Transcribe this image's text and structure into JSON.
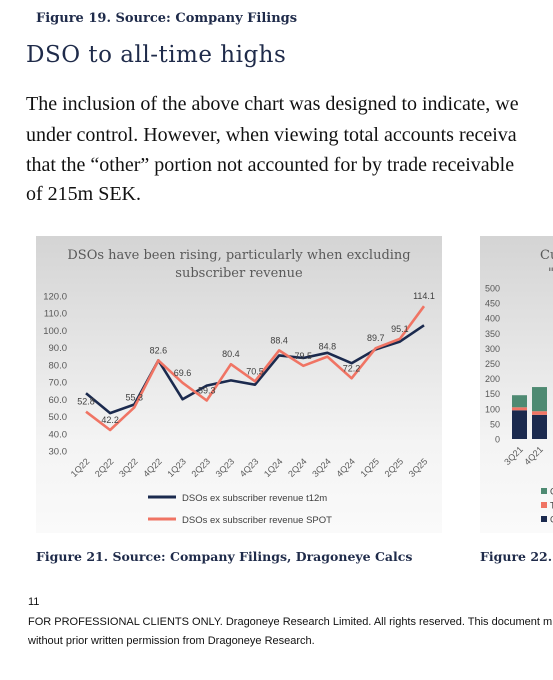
{
  "figure_top_label": "Figure 19.  Source: Company Filings",
  "heading": "DSO to all-time highs",
  "paragraph_lines": [
    "The inclusion of the above chart was designed to indicate, we",
    "under control. However, when viewing total accounts receiva",
    "that the “other” portion not accounted for by trade receivable",
    "of 215m SEK."
  ],
  "chart_data": [
    {
      "type": "line",
      "title": "DSOs have been rising, particularly when excluding subscriber revenue",
      "title_lines": [
        "DSOs have been rising, particularly when excluding",
        "subscriber revenue"
      ],
      "categories": [
        "1Q22",
        "2Q22",
        "3Q22",
        "4Q22",
        "1Q23",
        "2Q23",
        "3Q23",
        "4Q23",
        "1Q24",
        "2Q24",
        "3Q24",
        "4Q24",
        "1Q25",
        "2Q25",
        "3Q25"
      ],
      "y_ticks": [
        "120.0",
        "110.0",
        "100.0",
        "90.0",
        "80.0",
        "70.0",
        "60.0",
        "50.0",
        "40.0",
        "30.0"
      ],
      "ylim": [
        30,
        120
      ],
      "grid": false,
      "legend_position": "bottom",
      "series": [
        {
          "name": "DSOs ex subscriber revenue t12m",
          "color": "#1b2a4e",
          "values": [
            63.5,
            52.0,
            57.0,
            82.6,
            60.0,
            68.0,
            71.0,
            68.5,
            85.5,
            84.0,
            87.0,
            81.0,
            89.0,
            93.5,
            103.0
          ]
        },
        {
          "name": "DSOs ex subscriber revenue SPOT",
          "color": "#f07464",
          "values": [
            52.8,
            42.2,
            55.3,
            82.6,
            69.6,
            59.3,
            80.4,
            70.5,
            88.4,
            79.5,
            84.8,
            72.2,
            89.7,
            95.1,
            114.1
          ]
        }
      ],
      "data_labels": [
        {
          "series": 1,
          "index": 0,
          "text": "52.8"
        },
        {
          "series": 1,
          "index": 1,
          "text": "42.2"
        },
        {
          "series": 1,
          "index": 2,
          "text": "55.3"
        },
        {
          "series": 1,
          "index": 3,
          "text": "82.6"
        },
        {
          "series": 1,
          "index": 4,
          "text": "69.6"
        },
        {
          "series": 1,
          "index": 5,
          "text": "59.3"
        },
        {
          "series": 1,
          "index": 6,
          "text": "80.4"
        },
        {
          "series": 1,
          "index": 7,
          "text": "70.5"
        },
        {
          "series": 1,
          "index": 8,
          "text": "88.4"
        },
        {
          "series": 1,
          "index": 9,
          "text": "79.5"
        },
        {
          "series": 1,
          "index": 10,
          "text": "84.8"
        },
        {
          "series": 1,
          "index": 11,
          "text": "72.2"
        },
        {
          "series": 1,
          "index": 12,
          "text": "89.7"
        },
        {
          "series": 1,
          "index": 13,
          "text": "95.1"
        },
        {
          "series": 1,
          "index": 14,
          "text": "114.1"
        }
      ]
    },
    {
      "type": "bar",
      "title": "Cu",
      "title_line2": "\"",
      "categories": [
        "3Q21",
        "4Q21"
      ],
      "y_ticks": [
        "500",
        "450",
        "400",
        "350",
        "300",
        "250",
        "200",
        "150",
        "100",
        "50",
        "0"
      ],
      "ylim": [
        0,
        500
      ],
      "series": [
        {
          "name": "C",
          "color": "#1b2a4e",
          "values": [
            95,
            80
          ]
        },
        {
          "name": "T",
          "color": "#f07464",
          "values": [
            10,
            12
          ]
        },
        {
          "name": "C",
          "color": "#4e8a72",
          "values": [
            40,
            80
          ]
        }
      ],
      "legend_entries": [
        {
          "color": "#4e8a72",
          "label": "C"
        },
        {
          "color": "#f07464",
          "label": "T"
        },
        {
          "color": "#1b2a4e",
          "label": "C"
        }
      ]
    }
  ],
  "caption_left": "Figure 21.  Source: Company Filings, Dragoneye Calcs",
  "caption_right": "Figure 22.  S",
  "page_number": "11",
  "footer_line1": "FOR PROFESSIONAL CLIENTS ONLY. Dragoneye Research Limited. All rights reserved. This document m",
  "footer_line2": "without prior written permission from Dragoneye Research."
}
